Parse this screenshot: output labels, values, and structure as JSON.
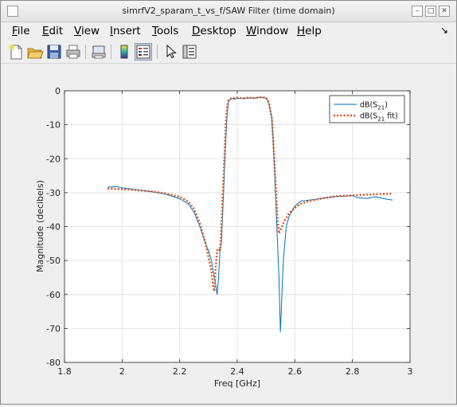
{
  "window": {
    "title": "simrfV2_sparam_t_vs_f/SAW Filter (time domain)",
    "controls": [
      {
        "name": "minimize-icon",
        "glyph": "–"
      },
      {
        "name": "maximize-icon",
        "glyph": "□"
      },
      {
        "name": "close-icon",
        "glyph": "✕"
      }
    ]
  },
  "menubar": {
    "items": [
      {
        "label": "File",
        "key": "F"
      },
      {
        "label": "Edit",
        "key": "E"
      },
      {
        "label": "View",
        "key": "V"
      },
      {
        "label": "Insert",
        "key": "I"
      },
      {
        "label": "Tools",
        "key": "T"
      },
      {
        "label": "Desktop",
        "key": "D"
      },
      {
        "label": "Window",
        "key": "W"
      },
      {
        "label": "Help",
        "key": "H"
      }
    ],
    "dock_glyph": "↘"
  },
  "toolbar": {
    "tools": [
      "new-figure-icon",
      "open-folder-icon",
      "save-icon",
      "print-icon",
      "print-preview-icon",
      "colorbar-icon",
      "legend-icon",
      "pointer-icon",
      "property-editor-icon"
    ]
  },
  "colors": {
    "series1": "#0072bd",
    "series2": "#d95319",
    "grid": "#e4e4e4",
    "axes_bg": "#ffffff"
  },
  "chart_data": {
    "type": "line",
    "title": "",
    "xlabel": "Freq [GHz]",
    "ylabel": "Magnitude (decibels)",
    "xlim": [
      1.8,
      3.0
    ],
    "ylim": [
      -80,
      0
    ],
    "xticks": [
      1.8,
      2.0,
      2.2,
      2.4,
      2.6,
      2.8,
      3.0
    ],
    "xtick_labels": [
      "1.8",
      "2",
      "2.2",
      "2.4",
      "2.6",
      "2.8",
      "3"
    ],
    "yticks": [
      0,
      -10,
      -20,
      -30,
      -40,
      -50,
      -60,
      -70,
      -80
    ],
    "ytick_labels": [
      "0",
      "-10",
      "-20",
      "-30",
      "-40",
      "-50",
      "-60",
      "-70",
      "-80"
    ],
    "grid": true,
    "legend_position": "top-right",
    "series": [
      {
        "name": "dB(S21)",
        "legend_main": "dB(S",
        "legend_sub": "21",
        "legend_tail": ")",
        "style": "solid",
        "x": [
          1.95,
          1.98,
          2.0,
          2.05,
          2.1,
          2.15,
          2.2,
          2.23,
          2.25,
          2.27,
          2.28,
          2.29,
          2.3,
          2.31,
          2.315,
          2.32,
          2.325,
          2.33,
          2.335,
          2.34,
          2.345,
          2.35,
          2.355,
          2.36,
          2.365,
          2.37,
          2.38,
          2.39,
          2.4,
          2.42,
          2.44,
          2.46,
          2.48,
          2.5,
          2.51,
          2.52,
          2.525,
          2.53,
          2.535,
          2.54,
          2.545,
          2.548,
          2.55,
          2.553,
          2.556,
          2.56,
          2.57,
          2.58,
          2.6,
          2.62,
          2.65,
          2.7,
          2.75,
          2.8,
          2.82,
          2.85,
          2.88,
          2.91,
          2.94
        ],
        "y": [
          -28.4,
          -28.2,
          -28.6,
          -29.1,
          -29.7,
          -30.4,
          -31.8,
          -33.3,
          -35.8,
          -40,
          -42.5,
          -45,
          -47,
          -50,
          -52.5,
          -55,
          -57,
          -60,
          -55,
          -47.5,
          -45,
          -35,
          -25,
          -15,
          -7,
          -3,
          -2.2,
          -2.5,
          -2.2,
          -2.3,
          -2.1,
          -2.2,
          -1.9,
          -2.2,
          -4,
          -8,
          -15,
          -25,
          -35,
          -45,
          -55,
          -65,
          -71,
          -65,
          -58,
          -50,
          -40,
          -37,
          -34,
          -32.5,
          -32.2,
          -31.6,
          -31.1,
          -30.9,
          -31.5,
          -31.7,
          -31.2,
          -31.8,
          -32.2
        ]
      },
      {
        "name": "dB(S21 fit)",
        "legend_main": "dB(S",
        "legend_sub": "21",
        "legend_tail": " fit)",
        "style": "dotted",
        "x": [
          1.95,
          1.98,
          2.0,
          2.05,
          2.1,
          2.15,
          2.2,
          2.23,
          2.25,
          2.27,
          2.28,
          2.29,
          2.3,
          2.31,
          2.315,
          2.32,
          2.325,
          2.33,
          2.335,
          2.34,
          2.345,
          2.35,
          2.355,
          2.36,
          2.365,
          2.37,
          2.38,
          2.39,
          2.4,
          2.42,
          2.44,
          2.46,
          2.48,
          2.5,
          2.51,
          2.52,
          2.525,
          2.53,
          2.535,
          2.54,
          2.545,
          2.55,
          2.555,
          2.56,
          2.57,
          2.58,
          2.6,
          2.62,
          2.65,
          2.7,
          2.75,
          2.8,
          2.85,
          2.9,
          2.94
        ],
        "y": [
          -28.8,
          -28.9,
          -29.0,
          -29.3,
          -29.6,
          -30.2,
          -31.2,
          -32.6,
          -34.8,
          -39,
          -42,
          -45,
          -49,
          -53,
          -57,
          -59,
          -52,
          -47,
          -46.5,
          -47,
          -40,
          -30,
          -20,
          -10,
          -4.5,
          -2.8,
          -2.1,
          -2.2,
          -2.0,
          -2.2,
          -2.0,
          -2.1,
          -1.9,
          -2.0,
          -3.5,
          -8,
          -15,
          -22,
          -30,
          -38,
          -42,
          -41,
          -40,
          -39,
          -37.5,
          -36,
          -34.5,
          -33.3,
          -32.5,
          -31.6,
          -31.0,
          -30.8,
          -30.6,
          -30.4,
          -30.3
        ]
      }
    ]
  }
}
